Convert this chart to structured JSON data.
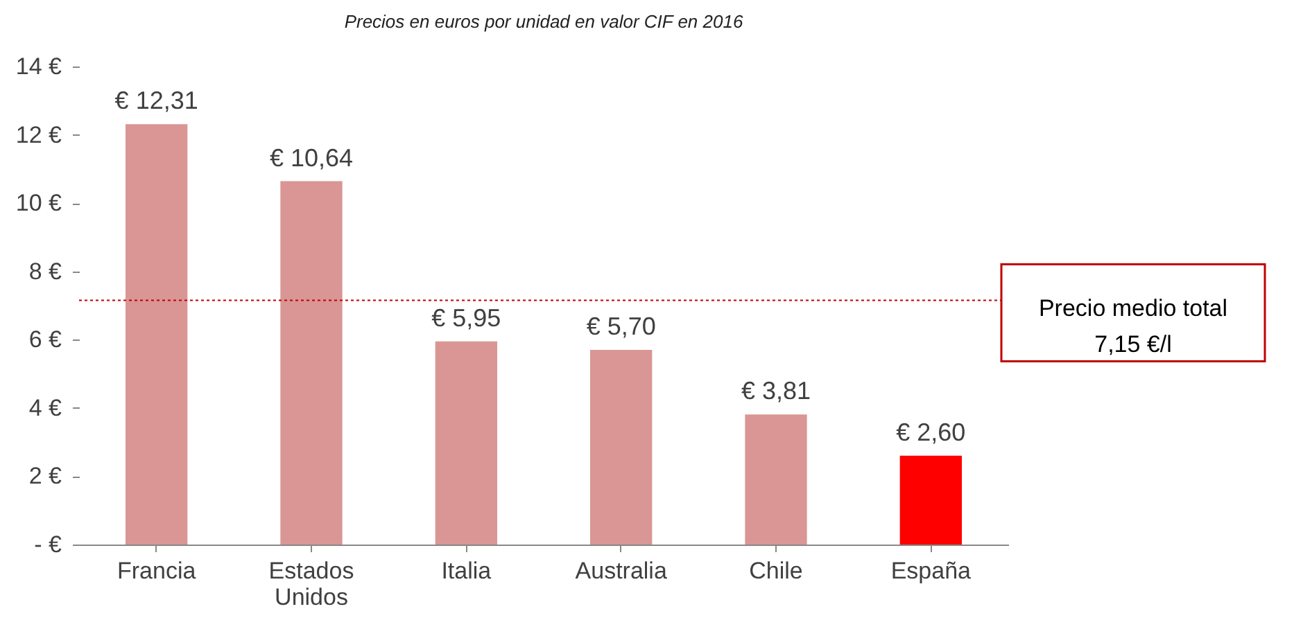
{
  "chart_data": {
    "type": "bar",
    "title": "Precios en euros por unidad en valor CIF en 2016",
    "categories": [
      "Francia",
      "Estados Unidos",
      "Italia",
      "Australia",
      "Chile",
      "España"
    ],
    "values": [
      12.31,
      10.64,
      5.95,
      5.7,
      3.81,
      2.6
    ],
    "colors": [
      "#d99694",
      "#d99694",
      "#d99694",
      "#d99694",
      "#d99694",
      "#ff0000"
    ],
    "value_labels": [
      "€ 12,31",
      "€ 10,64",
      "€ 5,95",
      "€ 5,70",
      "€ 3,81",
      "€ 2,60"
    ],
    "ylim": [
      0,
      14
    ],
    "yticks": [
      {
        "value": 0,
        "label": "- €"
      },
      {
        "value": 2,
        "label": "2 €"
      },
      {
        "value": 4,
        "label": "4 €"
      },
      {
        "value": 6,
        "label": "6 €"
      },
      {
        "value": 8,
        "label": "8 €"
      },
      {
        "value": 10,
        "label": "10 €"
      },
      {
        "value": 12,
        "label": "12 €"
      },
      {
        "value": 14,
        "label": "14 €"
      }
    ],
    "ref_lines": [
      {
        "axis": "y",
        "value": 7.15,
        "label": "Precio medio total\n7,15 €/l",
        "color": "#c00000",
        "line_style": "dotted"
      }
    ],
    "grid": false
  }
}
